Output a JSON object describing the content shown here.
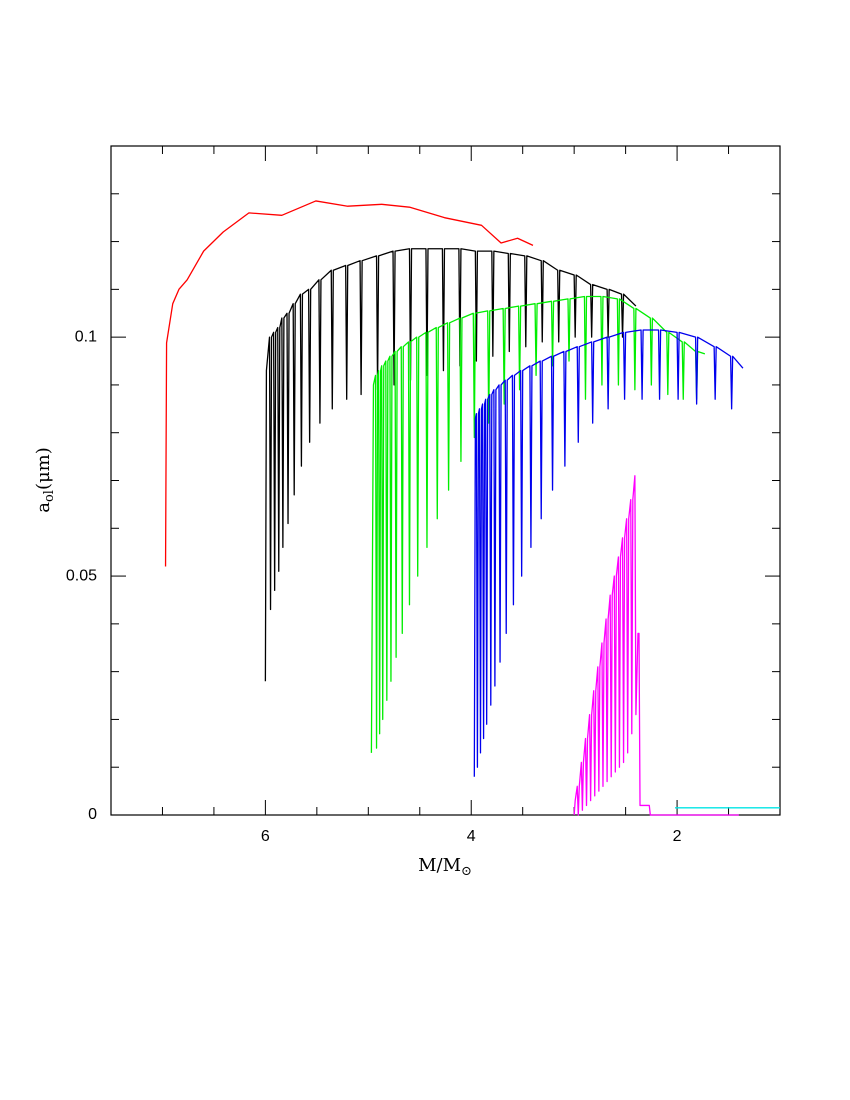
{
  "chart_data": {
    "type": "line",
    "x_label": {
      "main": "M/M",
      "sub": "⊙"
    },
    "y_label": {
      "main": "a",
      "sub": "ol",
      "rest": "(μm)"
    },
    "xlim": [
      7.5,
      1.0
    ],
    "ylim": [
      0,
      0.14
    ],
    "xticks": [
      2,
      4,
      6
    ],
    "xminorticks": [
      1.5,
      2.5,
      3,
      3.5,
      4.5,
      5,
      5.5,
      6.5,
      7
    ],
    "yticks": [
      0,
      0.05,
      0.1
    ],
    "yminorticks": [
      0.01,
      0.02,
      0.03,
      0.04,
      0.06,
      0.07,
      0.08,
      0.09,
      0.11,
      0.12,
      0.13
    ],
    "series": [
      {
        "color": "#ff0000",
        "x": [
          6.97,
          6.96,
          6.9,
          6.84,
          6.76,
          6.6,
          6.41,
          6.16,
          5.84,
          5.51,
          5.2,
          4.87,
          4.6,
          4.26,
          3.9,
          3.71,
          3.55,
          3.4
        ],
        "values": [
          0.052,
          0.0988,
          0.107,
          0.11,
          0.112,
          0.118,
          0.122,
          0.126,
          0.1255,
          0.1285,
          0.1274,
          0.1278,
          0.1272,
          0.125,
          0.1234,
          0.1197,
          0.1207,
          0.1192
        ]
      },
      {
        "color": "#000000",
        "x": [
          6.0,
          5.99,
          5.96,
          5.95,
          5.94,
          5.92,
          5.91,
          5.9,
          5.88,
          5.87,
          5.86,
          5.84,
          5.83,
          5.82,
          5.79,
          5.78,
          5.77,
          5.73,
          5.72,
          5.71,
          5.66,
          5.65,
          5.64,
          5.58,
          5.57,
          5.56,
          5.48,
          5.47,
          5.46,
          5.36,
          5.35,
          5.34,
          5.22,
          5.21,
          5.2,
          5.08,
          5.07,
          5.06,
          4.92,
          4.91,
          4.9,
          4.76,
          4.75,
          4.74,
          4.6,
          4.59,
          4.58,
          4.44,
          4.43,
          4.42,
          4.28,
          4.27,
          4.26,
          4.12,
          4.11,
          4.1,
          3.96,
          3.95,
          3.94,
          3.8,
          3.79,
          3.78,
          3.64,
          3.63,
          3.62,
          3.48,
          3.47,
          3.46,
          3.32,
          3.31,
          3.3,
          3.16,
          3.15,
          3.14,
          3.0,
          2.99,
          2.98,
          2.84,
          2.83,
          2.82,
          2.68,
          2.67,
          2.66,
          2.54,
          2.53,
          2.52,
          2.4
        ],
        "values": [
          0.028,
          0.093,
          0.1,
          0.043,
          0.1,
          0.101,
          0.047,
          0.101,
          0.102,
          0.051,
          0.102,
          0.104,
          0.056,
          0.104,
          0.105,
          0.061,
          0.105,
          0.107,
          0.067,
          0.107,
          0.109,
          0.073,
          0.109,
          0.11,
          0.078,
          0.11,
          0.112,
          0.082,
          0.112,
          0.114,
          0.085,
          0.114,
          0.115,
          0.087,
          0.115,
          0.116,
          0.088,
          0.116,
          0.117,
          0.089,
          0.117,
          0.118,
          0.09,
          0.118,
          0.1185,
          0.091,
          0.1185,
          0.1185,
          0.092,
          0.1185,
          0.1185,
          0.093,
          0.1185,
          0.1185,
          0.094,
          0.1185,
          0.118,
          0.095,
          0.118,
          0.118,
          0.096,
          0.118,
          0.1175,
          0.097,
          0.1175,
          0.117,
          0.098,
          0.117,
          0.116,
          0.099,
          0.116,
          0.114,
          0.099,
          0.114,
          0.113,
          0.1,
          0.113,
          0.111,
          0.1,
          0.111,
          0.11,
          0.1,
          0.11,
          0.109,
          0.1,
          0.109,
          0.1065
        ]
      },
      {
        "color": "#00ee00",
        "x": [
          4.97,
          4.95,
          4.93,
          4.92,
          4.91,
          4.9,
          4.89,
          4.88,
          4.87,
          4.86,
          4.85,
          4.83,
          4.82,
          4.81,
          4.79,
          4.78,
          4.77,
          4.74,
          4.73,
          4.72,
          4.68,
          4.67,
          4.66,
          4.61,
          4.6,
          4.59,
          4.53,
          4.52,
          4.51,
          4.44,
          4.43,
          4.42,
          4.34,
          4.33,
          4.32,
          4.23,
          4.22,
          4.21,
          4.11,
          4.1,
          4.09,
          3.98,
          3.97,
          3.96,
          3.84,
          3.83,
          3.82,
          3.69,
          3.68,
          3.67,
          3.54,
          3.53,
          3.52,
          3.38,
          3.37,
          3.36,
          3.22,
          3.21,
          3.2,
          3.06,
          3.05,
          3.04,
          2.9,
          2.89,
          2.88,
          2.74,
          2.73,
          2.72,
          2.58,
          2.57,
          2.56,
          2.42,
          2.41,
          2.4,
          2.26,
          2.25,
          2.24,
          2.1,
          2.09,
          2.08,
          1.95,
          1.94,
          1.93,
          1.82,
          1.81,
          1.8,
          1.73
        ],
        "values": [
          0.013,
          0.09,
          0.092,
          0.014,
          0.092,
          0.093,
          0.017,
          0.093,
          0.094,
          0.02,
          0.094,
          0.095,
          0.024,
          0.095,
          0.096,
          0.028,
          0.096,
          0.097,
          0.033,
          0.097,
          0.098,
          0.038,
          0.098,
          0.099,
          0.044,
          0.099,
          0.1,
          0.05,
          0.1,
          0.101,
          0.056,
          0.101,
          0.102,
          0.062,
          0.102,
          0.103,
          0.068,
          0.103,
          0.104,
          0.074,
          0.104,
          0.105,
          0.079,
          0.105,
          0.1055,
          0.082,
          0.1055,
          0.106,
          0.086,
          0.106,
          0.1065,
          0.089,
          0.1065,
          0.107,
          0.092,
          0.107,
          0.1075,
          0.094,
          0.1075,
          0.108,
          0.095,
          0.108,
          0.1085,
          0.087,
          0.1085,
          0.1085,
          0.09,
          0.1085,
          0.108,
          0.09,
          0.108,
          0.106,
          0.089,
          0.106,
          0.104,
          0.09,
          0.104,
          0.101,
          0.088,
          0.101,
          0.099,
          0.087,
          0.099,
          0.097,
          0.087,
          0.097,
          0.0965
        ]
      },
      {
        "color": "#0000ee",
        "x": [
          3.97,
          3.96,
          3.95,
          3.94,
          3.93,
          3.92,
          3.91,
          3.9,
          3.89,
          3.88,
          3.87,
          3.86,
          3.85,
          3.84,
          3.82,
          3.81,
          3.8,
          3.78,
          3.77,
          3.76,
          3.73,
          3.72,
          3.71,
          3.67,
          3.66,
          3.65,
          3.6,
          3.59,
          3.58,
          3.52,
          3.51,
          3.5,
          3.43,
          3.42,
          3.41,
          3.33,
          3.32,
          3.31,
          3.22,
          3.21,
          3.2,
          3.1,
          3.09,
          3.08,
          2.97,
          2.96,
          2.95,
          2.83,
          2.82,
          2.81,
          2.68,
          2.67,
          2.66,
          2.52,
          2.51,
          2.5,
          2.35,
          2.34,
          2.33,
          2.18,
          2.17,
          2.16,
          2.0,
          1.99,
          1.98,
          1.82,
          1.81,
          1.8,
          1.64,
          1.63,
          1.62,
          1.48,
          1.47,
          1.46,
          1.36
        ],
        "values": [
          0.008,
          0.083,
          0.084,
          0.01,
          0.084,
          0.085,
          0.013,
          0.085,
          0.086,
          0.016,
          0.086,
          0.087,
          0.019,
          0.087,
          0.088,
          0.023,
          0.088,
          0.089,
          0.027,
          0.089,
          0.09,
          0.032,
          0.09,
          0.091,
          0.038,
          0.091,
          0.092,
          0.044,
          0.092,
          0.093,
          0.05,
          0.093,
          0.094,
          0.056,
          0.094,
          0.095,
          0.062,
          0.095,
          0.096,
          0.068,
          0.096,
          0.097,
          0.073,
          0.097,
          0.098,
          0.078,
          0.098,
          0.099,
          0.082,
          0.099,
          0.1,
          0.085,
          0.1,
          0.101,
          0.087,
          0.101,
          0.1015,
          0.087,
          0.1015,
          0.1015,
          0.087,
          0.1015,
          0.101,
          0.087,
          0.101,
          0.1,
          0.086,
          0.1,
          0.098,
          0.087,
          0.098,
          0.096,
          0.085,
          0.096,
          0.0935
        ]
      },
      {
        "color": "#ff00ff",
        "x": [
          3.0,
          2.99,
          2.97,
          2.96,
          2.95,
          2.93,
          2.92,
          2.91,
          2.89,
          2.88,
          2.87,
          2.85,
          2.84,
          2.83,
          2.81,
          2.8,
          2.79,
          2.77,
          2.76,
          2.75,
          2.73,
          2.72,
          2.71,
          2.69,
          2.68,
          2.67,
          2.65,
          2.64,
          2.63,
          2.61,
          2.6,
          2.59,
          2.57,
          2.56,
          2.55,
          2.53,
          2.52,
          2.51,
          2.49,
          2.48,
          2.47,
          2.45,
          2.44,
          2.43,
          2.41,
          2.4,
          2.38,
          2.37,
          2.36,
          2.27,
          2.26,
          1.4
        ],
        "values": [
          0.0,
          0.003,
          0.006,
          0.0,
          0.006,
          0.011,
          0.001,
          0.011,
          0.016,
          0.002,
          0.016,
          0.021,
          0.003,
          0.021,
          0.026,
          0.004,
          0.026,
          0.031,
          0.005,
          0.031,
          0.036,
          0.006,
          0.036,
          0.041,
          0.007,
          0.041,
          0.046,
          0.008,
          0.046,
          0.05,
          0.009,
          0.05,
          0.054,
          0.01,
          0.054,
          0.058,
          0.011,
          0.058,
          0.062,
          0.013,
          0.062,
          0.066,
          0.017,
          0.066,
          0.071,
          0.021,
          0.038,
          0.038,
          0.002,
          0.002,
          0.0,
          0.0
        ]
      },
      {
        "color": "#00e5e5",
        "x": [
          2.02,
          1.0
        ],
        "values": [
          0.0015,
          0.0015
        ]
      }
    ]
  }
}
